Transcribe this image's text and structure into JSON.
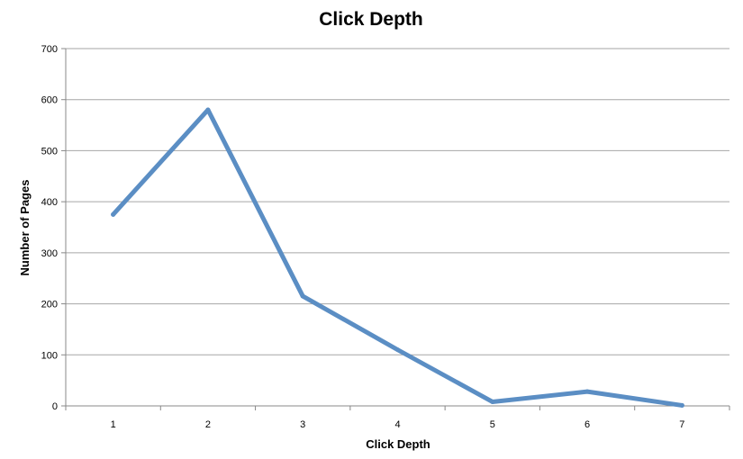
{
  "chart_data": {
    "type": "line",
    "title": "Click Depth",
    "xlabel": "Click Depth",
    "ylabel": "Number of Pages",
    "categories": [
      "1",
      "2",
      "3",
      "4",
      "5",
      "6",
      "7"
    ],
    "series": [
      {
        "values": [
          375,
          580,
          215,
          110,
          8,
          28,
          1
        ]
      }
    ],
    "ylim": [
      0,
      700
    ],
    "yticks": [
      "0",
      "100",
      "200",
      "300",
      "400",
      "500",
      "600",
      "700"
    ],
    "grid": true,
    "legend": "none"
  },
  "colors": {
    "series": "#5b8ec4",
    "grid": "#a6a6a6",
    "axis": "#888888"
  }
}
